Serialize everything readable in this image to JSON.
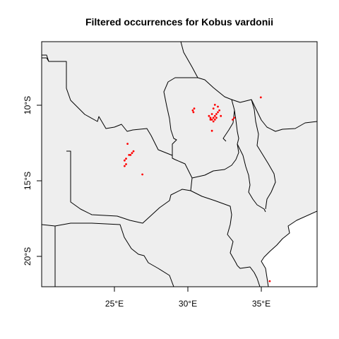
{
  "title": "Filtered occurrences for Kobus vardonii",
  "colors": {
    "land": "#eeeeee",
    "ocean": "#ffffff",
    "border": "#000000",
    "points": "#ff0000"
  },
  "map": {
    "lon_range": [
      20.2,
      38.8
    ],
    "lat_range": [
      -22.0,
      -8.8
    ],
    "x_ticks": [
      {
        "value": 25,
        "label": "25°E"
      },
      {
        "value": 30,
        "label": "30°E"
      },
      {
        "value": 35,
        "label": "35°E"
      }
    ],
    "y_ticks": [
      {
        "value": -10,
        "label": "10°S"
      },
      {
        "value": -15,
        "label": "15°S"
      },
      {
        "value": -20,
        "label": "20°S"
      }
    ]
  },
  "chart_data": {
    "type": "scatter",
    "title": "Filtered occurrences for Kobus vardonii",
    "xlabel": "",
    "ylabel": "",
    "xlim": [
      20.2,
      38.8
    ],
    "ylim": [
      -22.0,
      -8.8
    ],
    "grid": false,
    "points": [
      {
        "x": 30.4,
        "y": -12.5
      },
      {
        "x": 30.5,
        "y": -12.4
      },
      {
        "x": 30.45,
        "y": -12.6
      },
      {
        "x": 31.5,
        "y": -12.8
      },
      {
        "x": 31.6,
        "y": -12.9
      },
      {
        "x": 31.7,
        "y": -13.0
      },
      {
        "x": 31.8,
        "y": -12.9
      },
      {
        "x": 31.9,
        "y": -12.8
      },
      {
        "x": 32.0,
        "y": -12.7
      },
      {
        "x": 32.1,
        "y": -12.6
      },
      {
        "x": 32.2,
        "y": -12.5
      },
      {
        "x": 31.7,
        "y": -12.7
      },
      {
        "x": 31.8,
        "y": -13.1
      },
      {
        "x": 31.9,
        "y": -13.0
      },
      {
        "x": 31.6,
        "y": -13.0
      },
      {
        "x": 32.0,
        "y": -12.9
      },
      {
        "x": 32.1,
        "y": -12.3
      },
      {
        "x": 31.9,
        "y": -12.2
      },
      {
        "x": 31.8,
        "y": -12.4
      },
      {
        "x": 32.3,
        "y": -12.8
      },
      {
        "x": 31.7,
        "y": -13.6
      },
      {
        "x": 33.1,
        "y": -13.0
      },
      {
        "x": 33.2,
        "y": -12.9
      },
      {
        "x": 35.0,
        "y": -11.8
      },
      {
        "x": 26.0,
        "y": -14.3
      },
      {
        "x": 26.4,
        "y": -14.7
      },
      {
        "x": 26.3,
        "y": -14.8
      },
      {
        "x": 26.2,
        "y": -14.9
      },
      {
        "x": 26.1,
        "y": -14.9
      },
      {
        "x": 25.9,
        "y": -15.1
      },
      {
        "x": 25.8,
        "y": -15.2
      },
      {
        "x": 25.9,
        "y": -15.4
      },
      {
        "x": 25.8,
        "y": -15.5
      },
      {
        "x": 27.0,
        "y": -15.95
      },
      {
        "x": 35.6,
        "y": -21.7
      }
    ]
  }
}
